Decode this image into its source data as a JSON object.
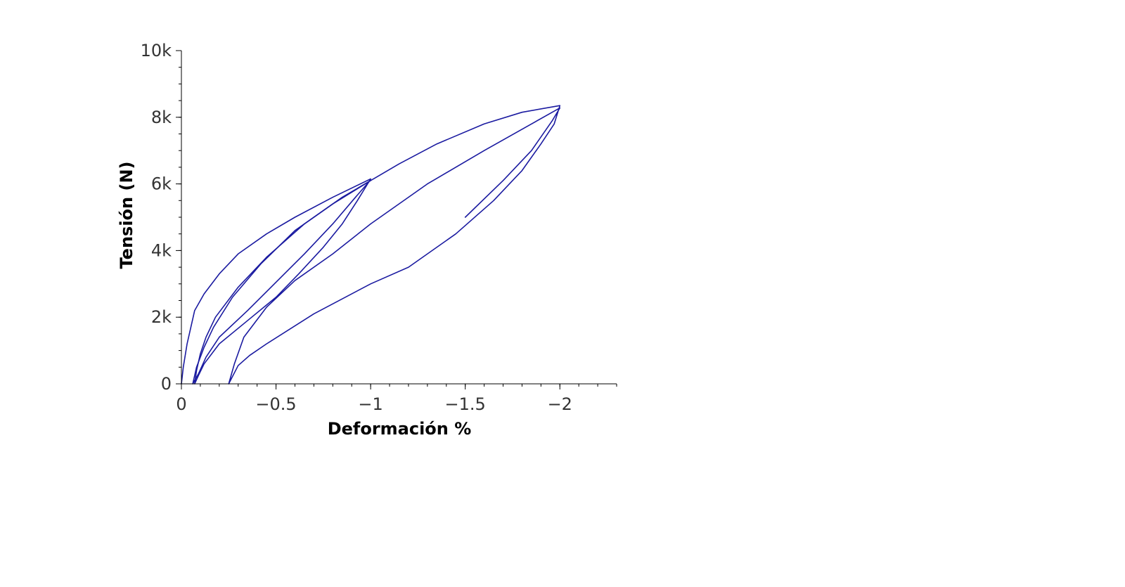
{
  "chart_data": {
    "type": "line",
    "title": "",
    "xlabel": "Deformación %",
    "ylabel": "Tensión (N)",
    "xlim": [
      0,
      -2.3
    ],
    "ylim": [
      0,
      10000
    ],
    "x_axis_reversed": true,
    "grid": false,
    "x_ticks": [
      {
        "value": 0,
        "label": "0"
      },
      {
        "value": -0.5,
        "label": "−0.5"
      },
      {
        "value": -1,
        "label": "−1"
      },
      {
        "value": -1.5,
        "label": "−1.5"
      },
      {
        "value": -2,
        "label": "−2"
      }
    ],
    "y_ticks": [
      {
        "value": 0,
        "label": "0"
      },
      {
        "value": 2000,
        "label": "2k"
      },
      {
        "value": 4000,
        "label": "4k"
      },
      {
        "value": 6000,
        "label": "6k"
      },
      {
        "value": 8000,
        "label": "8k"
      },
      {
        "value": 10000,
        "label": "10k"
      }
    ],
    "x_minor_step": 0.1,
    "y_minor_step": 500,
    "line_color": "#1a1aa0",
    "series": [
      {
        "points": [
          [
            0,
            0
          ],
          [
            -0.01,
            500
          ],
          [
            -0.03,
            1200
          ],
          [
            -0.05,
            1700
          ],
          [
            -0.07,
            2200
          ],
          [
            -0.12,
            2700
          ],
          [
            -0.2,
            3300
          ],
          [
            -0.3,
            3900
          ],
          [
            -0.45,
            4500
          ],
          [
            -0.6,
            5000
          ],
          [
            -0.8,
            5600
          ],
          [
            -1.0,
            6150
          ],
          [
            -0.93,
            5500
          ],
          [
            -0.85,
            4800
          ],
          [
            -0.75,
            4100
          ],
          [
            -0.62,
            3300
          ],
          [
            -0.5,
            2600
          ],
          [
            -0.35,
            1900
          ],
          [
            -0.2,
            1200
          ],
          [
            -0.12,
            600
          ],
          [
            -0.09,
            250
          ],
          [
            -0.07,
            0
          ],
          [
            -0.08,
            400
          ],
          [
            -0.1,
            900
          ],
          [
            -0.13,
            1400
          ],
          [
            -0.18,
            2000
          ],
          [
            -0.3,
            2900
          ],
          [
            -0.45,
            3800
          ],
          [
            -0.65,
            4800
          ],
          [
            -0.85,
            5600
          ],
          [
            -1.0,
            6100
          ],
          [
            -1.15,
            6600
          ],
          [
            -1.35,
            7200
          ],
          [
            -1.6,
            7800
          ],
          [
            -1.8,
            8150
          ],
          [
            -2.0,
            8350
          ],
          [
            -1.97,
            7800
          ],
          [
            -1.9,
            7200
          ],
          [
            -1.8,
            6400
          ],
          [
            -1.65,
            5500
          ],
          [
            -1.45,
            4500
          ],
          [
            -1.2,
            3500
          ],
          [
            -1.0,
            3000
          ],
          [
            -0.7,
            2100
          ],
          [
            -0.45,
            1200
          ],
          [
            -0.36,
            850
          ],
          [
            -0.3,
            550
          ],
          [
            -0.25,
            0
          ],
          [
            -0.28,
            600
          ],
          [
            -0.33,
            1400
          ],
          [
            -0.45,
            2300
          ],
          [
            -0.6,
            3100
          ],
          [
            -0.8,
            3900
          ],
          [
            -1.0,
            4800
          ],
          [
            -1.3,
            6000
          ],
          [
            -1.6,
            7000
          ],
          [
            -1.85,
            7800
          ],
          [
            -2.0,
            8280
          ],
          [
            -1.96,
            7900
          ],
          [
            -1.85,
            7000
          ],
          [
            -1.7,
            6100
          ],
          [
            -1.5,
            5000
          ]
        ]
      },
      {
        "points": [
          [
            -1.0,
            6120
          ],
          [
            -0.92,
            5600
          ],
          [
            -0.8,
            4800
          ],
          [
            -0.65,
            3900
          ],
          [
            -0.5,
            3050
          ],
          [
            -0.35,
            2200
          ],
          [
            -0.2,
            1400
          ],
          [
            -0.13,
            800
          ],
          [
            -0.09,
            300
          ],
          [
            -0.06,
            0
          ],
          [
            -0.08,
            500
          ],
          [
            -0.12,
            1100
          ],
          [
            -0.17,
            1700
          ],
          [
            -0.27,
            2600
          ],
          [
            -0.42,
            3600
          ],
          [
            -0.6,
            4600
          ],
          [
            -0.8,
            5400
          ],
          [
            -1.0,
            6100
          ]
        ]
      }
    ]
  }
}
